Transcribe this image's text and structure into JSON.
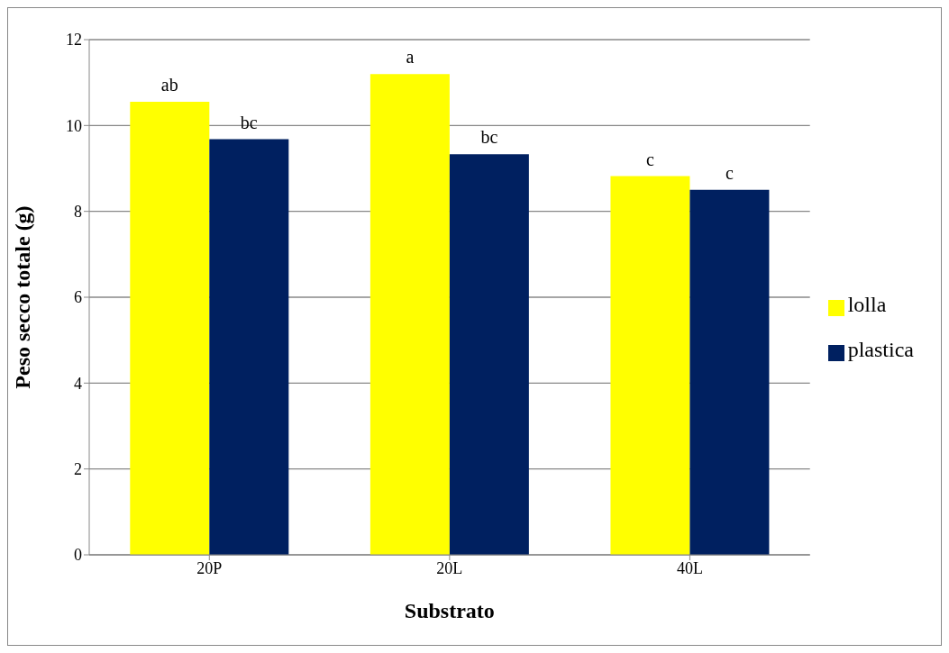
{
  "chart_data": {
    "type": "bar",
    "xlabel": "Substrato",
    "ylabel": "Peso secco totale (g)",
    "categories": [
      "20P",
      "20L",
      "40L"
    ],
    "series": [
      {
        "name": "lolla",
        "color": "#ffff00",
        "values": [
          10.55,
          11.2,
          8.82
        ],
        "value_labels": [
          "ab",
          "a",
          "c"
        ]
      },
      {
        "name": "plastica",
        "color": "#002060",
        "values": [
          9.68,
          9.33,
          8.5
        ],
        "value_labels": [
          "bc",
          "bc",
          "c"
        ]
      }
    ],
    "ylim": [
      0,
      12
    ],
    "yticks": [
      0,
      2,
      4,
      6,
      8,
      10,
      12
    ],
    "grid": "y",
    "legend": "right"
  }
}
